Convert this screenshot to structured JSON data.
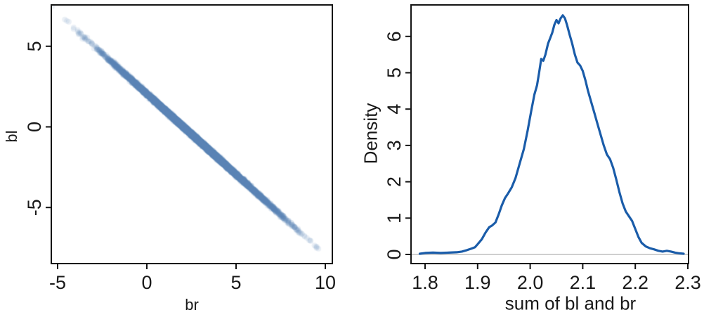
{
  "figure": {
    "background": "#ffffff",
    "text_color": "#191919",
    "box_color": "#141414",
    "description": "Two-panel R-style statistical figure: scatter of posterior samples bl vs br (near-perfect negative correlation), and posterior density of the sum bl + br"
  },
  "chart_data": [
    {
      "type": "scatter",
      "title": "",
      "xlabel": "br",
      "ylabel": "bl",
      "xlim": [
        -5.35,
        10.39
      ],
      "ylim": [
        -8.49,
        7.58
      ],
      "x_ticks": [
        -5,
        0,
        5,
        10
      ],
      "x_tick_labels": [
        "-5",
        "0",
        "5",
        "10"
      ],
      "y_ticks": [
        -5,
        0,
        5
      ],
      "y_tick_labels": [
        "-5",
        "0",
        "5"
      ],
      "grid": false,
      "legend": false,
      "point_color": "#5b80b8",
      "point_alpha": 0.12,
      "point_radius_px": 4,
      "points_spec": {
        "n": 10000,
        "seed": 42,
        "br_mean": 2.55,
        "br_sd": 2.05,
        "sum_mean": 2.05,
        "sum_sd": 0.062,
        "relation": "bl = sum - br (points lie on the line bl = 2.05 - br with tiny spread)"
      }
    },
    {
      "type": "line",
      "title": "",
      "xlabel": "sum of bl and br",
      "ylabel": "Density",
      "xlim": [
        1.773,
        2.301
      ],
      "ylim": [
        -0.25,
        6.87
      ],
      "x_ticks": [
        1.8,
        1.9,
        2.0,
        2.1,
        2.2,
        2.3
      ],
      "x_tick_labels": [
        "1.8",
        "1.9",
        "2.0",
        "2.1",
        "2.2",
        "2.3"
      ],
      "y_ticks": [
        0,
        1,
        2,
        3,
        4,
        5,
        6
      ],
      "y_tick_labels": [
        "0",
        "1",
        "2",
        "3",
        "4",
        "5",
        "6"
      ],
      "grid": false,
      "legend": false,
      "line_color": "#1a5ca9",
      "line_width": 3.2,
      "baseline_color": "#bfbfbf",
      "x": [
        1.79,
        1.8,
        1.815,
        1.83,
        1.845,
        1.86,
        1.87,
        1.88,
        1.888,
        1.895,
        1.9,
        1.908,
        1.915,
        1.922,
        1.928,
        1.934,
        1.94,
        1.946,
        1.952,
        1.958,
        1.965,
        1.972,
        1.98,
        1.988,
        1.995,
        2.002,
        2.008,
        2.013,
        2.017,
        2.021,
        2.025,
        2.029,
        2.034,
        2.038,
        2.042,
        2.046,
        2.05,
        2.054,
        2.058,
        2.062,
        2.066,
        2.07,
        2.075,
        2.08,
        2.085,
        2.09,
        2.095,
        2.1,
        2.105,
        2.11,
        2.116,
        2.122,
        2.128,
        2.134,
        2.14,
        2.146,
        2.152,
        2.158,
        2.164,
        2.17,
        2.176,
        2.182,
        2.188,
        2.194,
        2.2,
        2.206,
        2.212,
        2.22,
        2.228,
        2.236,
        2.244,
        2.252,
        2.26,
        2.268,
        2.276,
        2.284,
        2.292
      ],
      "density": [
        0.02,
        0.04,
        0.05,
        0.04,
        0.05,
        0.06,
        0.08,
        0.12,
        0.16,
        0.2,
        0.28,
        0.42,
        0.6,
        0.75,
        0.8,
        0.88,
        1.1,
        1.35,
        1.55,
        1.68,
        1.85,
        2.1,
        2.5,
        2.9,
        3.4,
        3.95,
        4.4,
        4.65,
        5.0,
        5.38,
        5.33,
        5.5,
        5.8,
        5.95,
        6.1,
        6.32,
        6.45,
        6.36,
        6.5,
        6.58,
        6.5,
        6.32,
        6.05,
        5.8,
        5.5,
        5.28,
        5.2,
        5.05,
        4.8,
        4.5,
        4.2,
        3.9,
        3.6,
        3.3,
        3.0,
        2.75,
        2.62,
        2.38,
        2.05,
        1.7,
        1.4,
        1.18,
        1.05,
        0.92,
        0.7,
        0.48,
        0.32,
        0.22,
        0.17,
        0.14,
        0.1,
        0.08,
        0.1,
        0.08,
        0.05,
        0.03,
        0.02
      ],
      "peak": {
        "x": 2.062,
        "density": 6.58
      }
    }
  ]
}
